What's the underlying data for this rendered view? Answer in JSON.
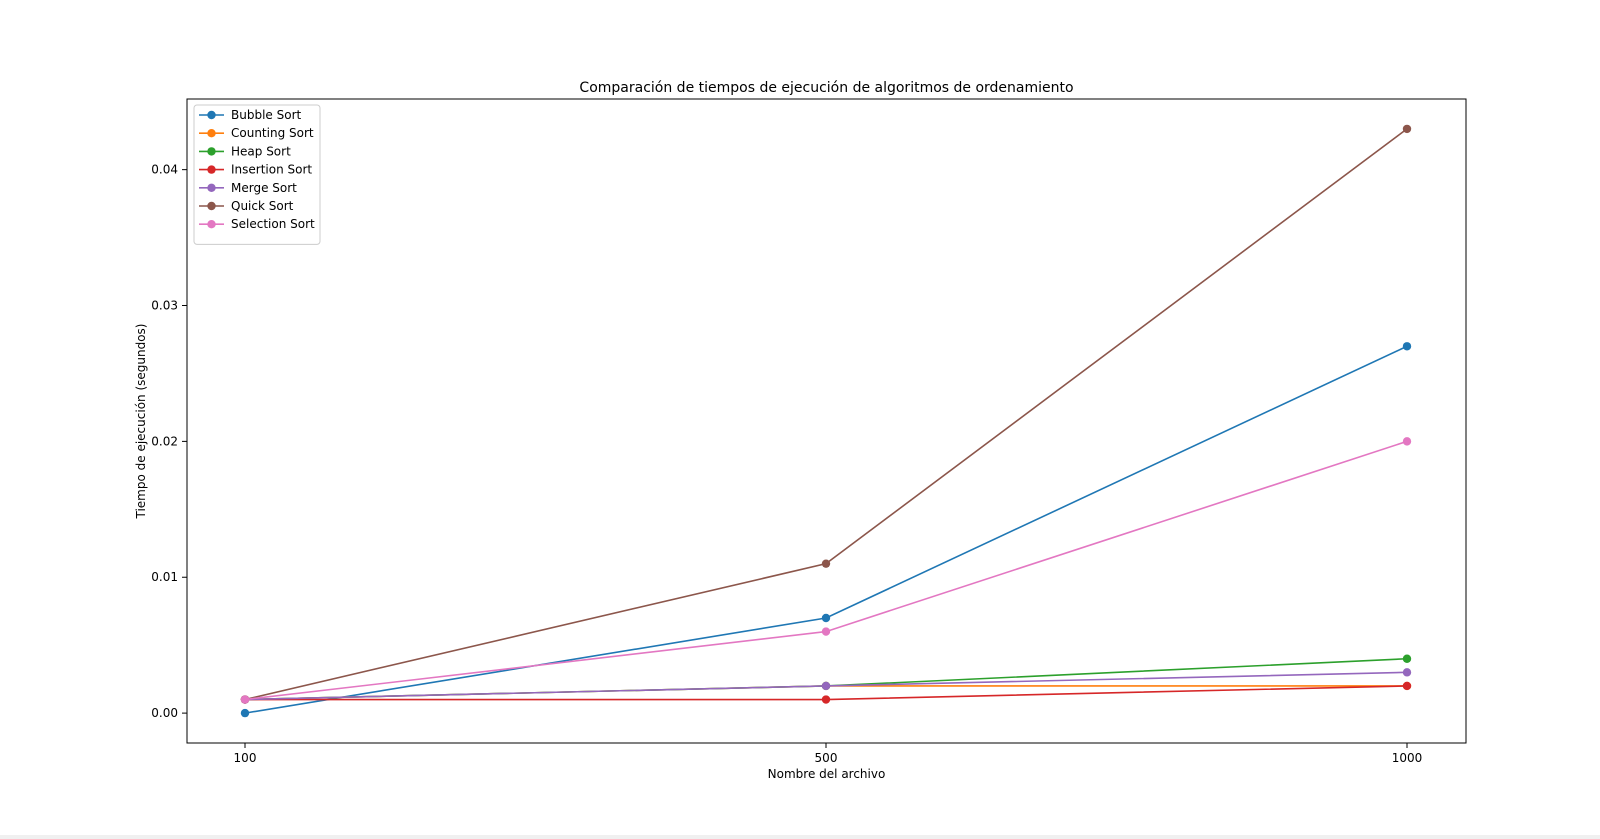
{
  "chart_data": {
    "type": "line",
    "title": "Comparación de tiempos de ejecución de algoritmos de ordenamiento",
    "xlabel": "Nombre del archivo",
    "ylabel": "Tiempo de ejecución (segundos)",
    "x": [
      "100",
      "500",
      "1000"
    ],
    "ylim": [
      -0.0022,
      0.0452
    ],
    "yticks": [
      "0.00",
      "0.01",
      "0.02",
      "0.03",
      "0.04"
    ],
    "grid": false,
    "legend_position": "top-left",
    "markers": true,
    "series": [
      {
        "name": "Bubble Sort",
        "color": "#1f77b4",
        "values": [
          0.0,
          0.007,
          0.027
        ]
      },
      {
        "name": "Counting Sort",
        "color": "#ff7f0e",
        "values": [
          0.001,
          0.002,
          0.002
        ]
      },
      {
        "name": "Heap Sort",
        "color": "#2ca02c",
        "values": [
          0.001,
          0.002,
          0.004
        ]
      },
      {
        "name": "Insertion Sort",
        "color": "#d62728",
        "values": [
          0.001,
          0.001,
          0.002
        ]
      },
      {
        "name": "Merge Sort",
        "color": "#9467bd",
        "values": [
          0.001,
          0.002,
          0.003
        ]
      },
      {
        "name": "Quick Sort",
        "color": "#8c564b",
        "values": [
          0.001,
          0.011,
          0.043
        ]
      },
      {
        "name": "Selection Sort",
        "color": "#e377c2",
        "values": [
          0.001,
          0.006,
          0.02
        ]
      }
    ]
  }
}
